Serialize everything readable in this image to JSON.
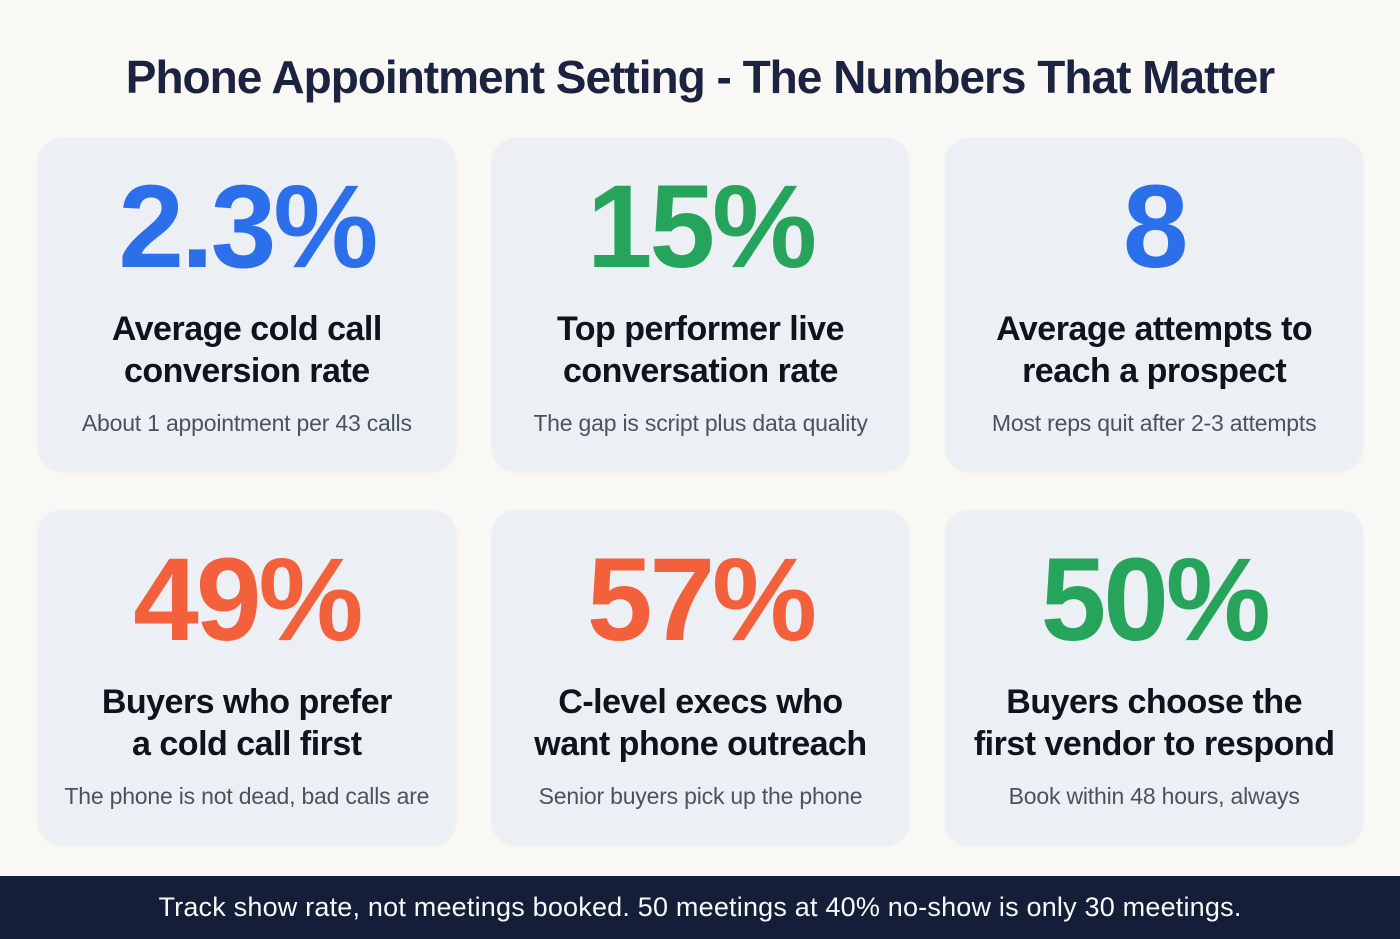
{
  "page": {
    "title": "Phone Appointment Setting - The Numbers That Matter",
    "footer": "Track show rate, not meetings booked. 50 meetings at 40% no-show is only 30 meetings."
  },
  "colors": {
    "page_bg": "#FAF8F5",
    "card_bg": "#ECEFF4",
    "title_text": "#1B2341",
    "card_title_text": "#10131A",
    "subtitle_text": "#4A5262",
    "footer_bg": "#141E38",
    "footer_text": "#F7F8FA",
    "blue": "#2B6FEA",
    "green": "#27A45B",
    "orange": "#F2613C"
  },
  "cards": [
    {
      "value": "2.3%",
      "color": "blue",
      "title_lines": [
        "Average cold call",
        "conversion rate"
      ],
      "subtitle": "About 1 appointment per 43 calls"
    },
    {
      "value": "15%",
      "color": "green",
      "title_lines": [
        "Top performer live",
        "conversation rate"
      ],
      "subtitle": "The gap is script plus data quality"
    },
    {
      "value": "8",
      "color": "blue",
      "title_lines": [
        "Average attempts to",
        "reach a prospect"
      ],
      "subtitle": "Most reps quit after 2-3 attempts"
    },
    {
      "value": "49%",
      "color": "orange",
      "title_lines": [
        "Buyers who prefer",
        "a cold call first"
      ],
      "subtitle": "The phone is not dead, bad calls are"
    },
    {
      "value": "57%",
      "color": "orange",
      "title_lines": [
        "C-level execs who",
        "want phone outreach"
      ],
      "subtitle": "Senior buyers pick up the phone"
    },
    {
      "value": "50%",
      "color": "green",
      "title_lines": [
        "Buyers choose the",
        "first vendor to respond"
      ],
      "subtitle": "Book within 48 hours, always"
    }
  ],
  "chart_data": {
    "type": "table",
    "title": "Phone Appointment Setting - The Numbers That Matter",
    "categories": [
      "Average cold call conversion rate",
      "Top performer live conversation rate",
      "Average attempts to reach a prospect",
      "Buyers who prefer a cold call first",
      "C-level execs who want phone outreach",
      "Buyers choose the first vendor to respond"
    ],
    "values": [
      2.3,
      15,
      8,
      49,
      57,
      50
    ],
    "units": [
      "%",
      "%",
      "attempts",
      "%",
      "%",
      "%"
    ],
    "notes": [
      "About 1 appointment per 43 calls",
      "The gap is script plus data quality",
      "Most reps quit after 2-3 attempts",
      "The phone is not dead, bad calls are",
      "Senior buyers pick up the phone",
      "Book within 48 hours, always"
    ],
    "value_colors": [
      "#2B6FEA",
      "#27A45B",
      "#2B6FEA",
      "#F2613C",
      "#F2613C",
      "#27A45B"
    ],
    "footnote": "Track show rate, not meetings booked. 50 meetings at 40% no-show is only 30 meetings.",
    "layout": "2 rows x 3 columns stat cards, footnote banner at bottom"
  }
}
